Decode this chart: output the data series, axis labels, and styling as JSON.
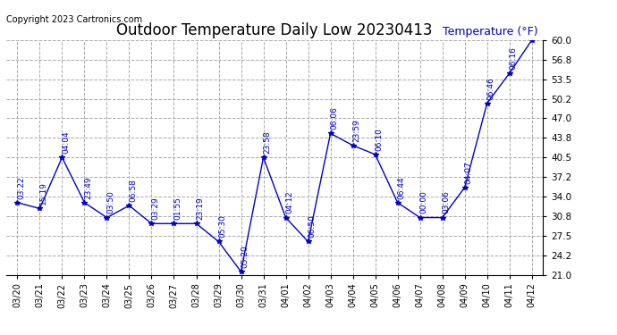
{
  "title": "Outdoor Temperature Daily Low 20230413",
  "inner_ylabel": "Temperature (°F)",
  "copyright_text": "Copyright 2023 Cartronics.com",
  "ylim": [
    21.0,
    60.0
  ],
  "yticks": [
    21.0,
    24.2,
    27.5,
    30.8,
    34.0,
    37.2,
    40.5,
    43.8,
    47.0,
    50.2,
    53.5,
    56.8,
    60.0
  ],
  "dates": [
    "03/20",
    "03/21",
    "03/22",
    "03/23",
    "03/24",
    "03/25",
    "03/26",
    "03/27",
    "03/28",
    "03/29",
    "03/30",
    "03/31",
    "04/01",
    "04/02",
    "04/03",
    "04/04",
    "04/05",
    "04/06",
    "04/07",
    "04/08",
    "04/09",
    "04/10",
    "04/11",
    "04/12"
  ],
  "temperatures": [
    33.0,
    32.0,
    40.5,
    33.0,
    30.5,
    32.5,
    29.5,
    29.5,
    29.5,
    26.5,
    21.5,
    40.5,
    30.5,
    26.5,
    44.5,
    42.5,
    41.0,
    33.0,
    30.5,
    30.5,
    35.5,
    49.5,
    54.5,
    60.0
  ],
  "annotations": [
    "03:22",
    "15:19",
    "04:04",
    "23:49",
    "03:50",
    "06:58",
    "03:29",
    "01:55",
    "23:19",
    "05:30",
    "05:20",
    "23:58",
    "04:12",
    "06:50",
    "06:06",
    "23:59",
    "06:10",
    "06:44",
    "00:00",
    "03:06",
    "04:07",
    "06:46",
    "06:16",
    ""
  ],
  "line_color": "#0000CC",
  "marker": "*",
  "marker_size": 4,
  "annotation_color": "#0000CC",
  "annotation_fontsize": 6.5,
  "grid_color": "#aaaaaa",
  "grid_style": "--",
  "background_color": "#ffffff",
  "title_fontsize": 12,
  "inner_ylabel_color": "#0000CC",
  "inner_ylabel_fontsize": 9,
  "copyright_color": "#000000",
  "copyright_fontsize": 7,
  "tick_fontsize": 7,
  "ytick_fontsize": 7.5
}
